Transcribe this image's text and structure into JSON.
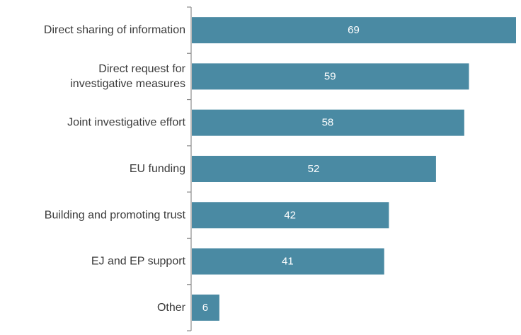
{
  "chart_data": {
    "type": "bar",
    "orientation": "horizontal",
    "categories": [
      [
        "Direct sharing of information"
      ],
      [
        "Direct request for",
        "investigative measures"
      ],
      [
        "Joint investigative effort"
      ],
      [
        "EU funding"
      ],
      [
        "Building and promoting trust"
      ],
      [
        "EJ and EP support"
      ],
      [
        "Other"
      ]
    ],
    "values": [
      69,
      59,
      58,
      52,
      42,
      41,
      6
    ],
    "data_labels": [
      "69",
      "59",
      "58",
      "52",
      "42",
      "41",
      "6"
    ],
    "xlim": [
      0,
      69
    ],
    "grid": false,
    "legend": "none",
    "colors": {
      "bar": "#4a8aa3",
      "axis": "#8c8c8c",
      "label": "#3a3a3a",
      "value_label": "#ffffff"
    }
  }
}
